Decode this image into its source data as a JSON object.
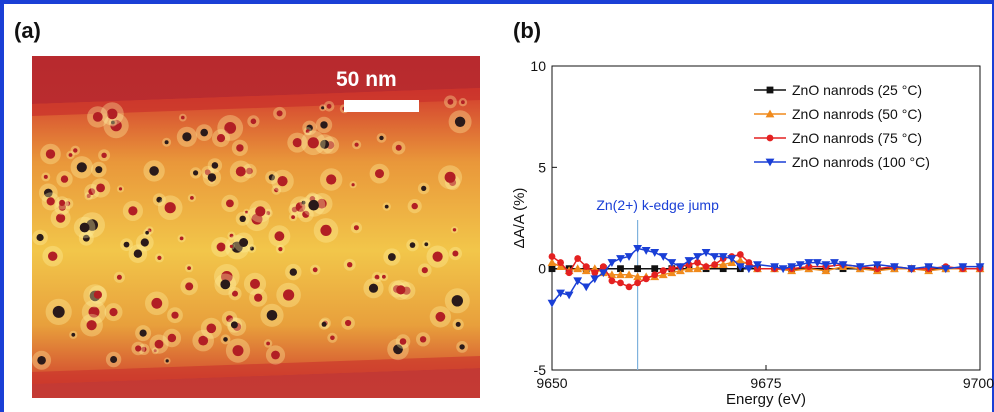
{
  "panel_a": {
    "label": "(a)",
    "scale_bar_label": "50 nm"
  },
  "panel_b": {
    "label": "(b)"
  },
  "chart_data": {
    "type": "line",
    "title": "",
    "xlabel": "Energy (eV)",
    "ylabel": "ΔA/A (%)",
    "xlim": [
      9650,
      9700
    ],
    "ylim": [
      -5,
      10
    ],
    "xticks": [
      "9650",
      "9675",
      "9700"
    ],
    "yticks": [
      "10",
      "5",
      "0",
      "-5"
    ],
    "grid": false,
    "legend_position": "top-right",
    "annotation": {
      "text": "Zn(2+) k-edge jump",
      "x": 9660,
      "color": "#1a3fd6"
    },
    "series": [
      {
        "name": "ZnO nanrods (25 °C)",
        "color": "#111111",
        "marker": "square",
        "x": [
          9650,
          9652,
          9654,
          9656,
          9658,
          9660,
          9662,
          9664,
          9666,
          9668,
          9670,
          9672,
          9674,
          9676,
          9678,
          9680,
          9682,
          9684,
          9686,
          9688,
          9690,
          9692,
          9694,
          9696,
          9698,
          9700
        ],
        "y": [
          0,
          0,
          0,
          0,
          0,
          0,
          0,
          0,
          0,
          0,
          0,
          0,
          0,
          0,
          0,
          0,
          0,
          0,
          0,
          0,
          0,
          0,
          0,
          0,
          0,
          0
        ]
      },
      {
        "name": "ZnO nanrods (50 °C)",
        "color": "#f08a1c",
        "marker": "triangle-up",
        "x": [
          9650,
          9651,
          9652,
          9653,
          9654,
          9655,
          9656,
          9657,
          9658,
          9659,
          9660,
          9661,
          9662,
          9663,
          9664,
          9665,
          9666,
          9667,
          9668,
          9669,
          9670,
          9671,
          9672,
          9673,
          9674,
          9676,
          9678,
          9680,
          9682,
          9684,
          9686,
          9688,
          9690,
          9692,
          9694,
          9696,
          9698,
          9700
        ],
        "y": [
          0.3,
          0.1,
          -0.1,
          0,
          -0.1,
          0,
          -0.2,
          -0.3,
          -0.3,
          -0.3,
          -0.4,
          -0.4,
          -0.4,
          -0.3,
          -0.2,
          -0.1,
          0,
          0,
          0.1,
          0.2,
          0.2,
          0.3,
          0.4,
          0.2,
          0,
          0,
          -0.1,
          0,
          -0.1,
          0.1,
          0,
          -0.1,
          0,
          0,
          -0.1,
          0,
          0,
          0
        ]
      },
      {
        "name": "ZnO nanrods (75 °C)",
        "color": "#e42121",
        "marker": "circle",
        "x": [
          9650,
          9651,
          9652,
          9653,
          9654,
          9655,
          9656,
          9657,
          9658,
          9659,
          9660,
          9661,
          9662,
          9663,
          9664,
          9665,
          9666,
          9667,
          9668,
          9669,
          9670,
          9671,
          9672,
          9673,
          9674,
          9676,
          9678,
          9680,
          9682,
          9684,
          9686,
          9688,
          9690,
          9692,
          9694,
          9696,
          9698,
          9700
        ],
        "y": [
          0.6,
          0.3,
          -0.2,
          0.5,
          0.1,
          -0.2,
          0.1,
          -0.6,
          -0.7,
          -0.9,
          -0.7,
          -0.5,
          -0.3,
          -0.1,
          0,
          0.1,
          0.2,
          0.3,
          0.1,
          0.2,
          0.5,
          0.6,
          0.7,
          0.3,
          0,
          0,
          0,
          0.1,
          0.1,
          0.2,
          0.1,
          0,
          0.1,
          0,
          0,
          0.1,
          0,
          0
        ]
      },
      {
        "name": "ZnO nanrods (100 °C)",
        "color": "#1a3fd6",
        "marker": "triangle-down",
        "x": [
          9650,
          9651,
          9652,
          9653,
          9654,
          9655,
          9656,
          9657,
          9658,
          9659,
          9660,
          9661,
          9662,
          9663,
          9664,
          9665,
          9666,
          9667,
          9668,
          9669,
          9670,
          9671,
          9672,
          9673,
          9674,
          9676,
          9677,
          9678,
          9679,
          9680,
          9681,
          9682,
          9683,
          9684,
          9686,
          9688,
          9690,
          9692,
          9694,
          9696,
          9698,
          9700
        ],
        "y": [
          -1.7,
          -1.2,
          -1.3,
          -0.6,
          -0.9,
          -0.5,
          -0.2,
          0.3,
          0.5,
          0.6,
          1.0,
          0.9,
          0.8,
          0.6,
          0.3,
          0.1,
          0.4,
          0.6,
          0.8,
          0.6,
          0.6,
          0.5,
          0.1,
          0,
          0.2,
          0.1,
          0,
          0.1,
          0.2,
          0.3,
          0.3,
          0.2,
          0.3,
          0.2,
          0.1,
          0.2,
          0.1,
          0,
          0.1,
          0,
          0.1,
          0.1
        ]
      }
    ]
  }
}
